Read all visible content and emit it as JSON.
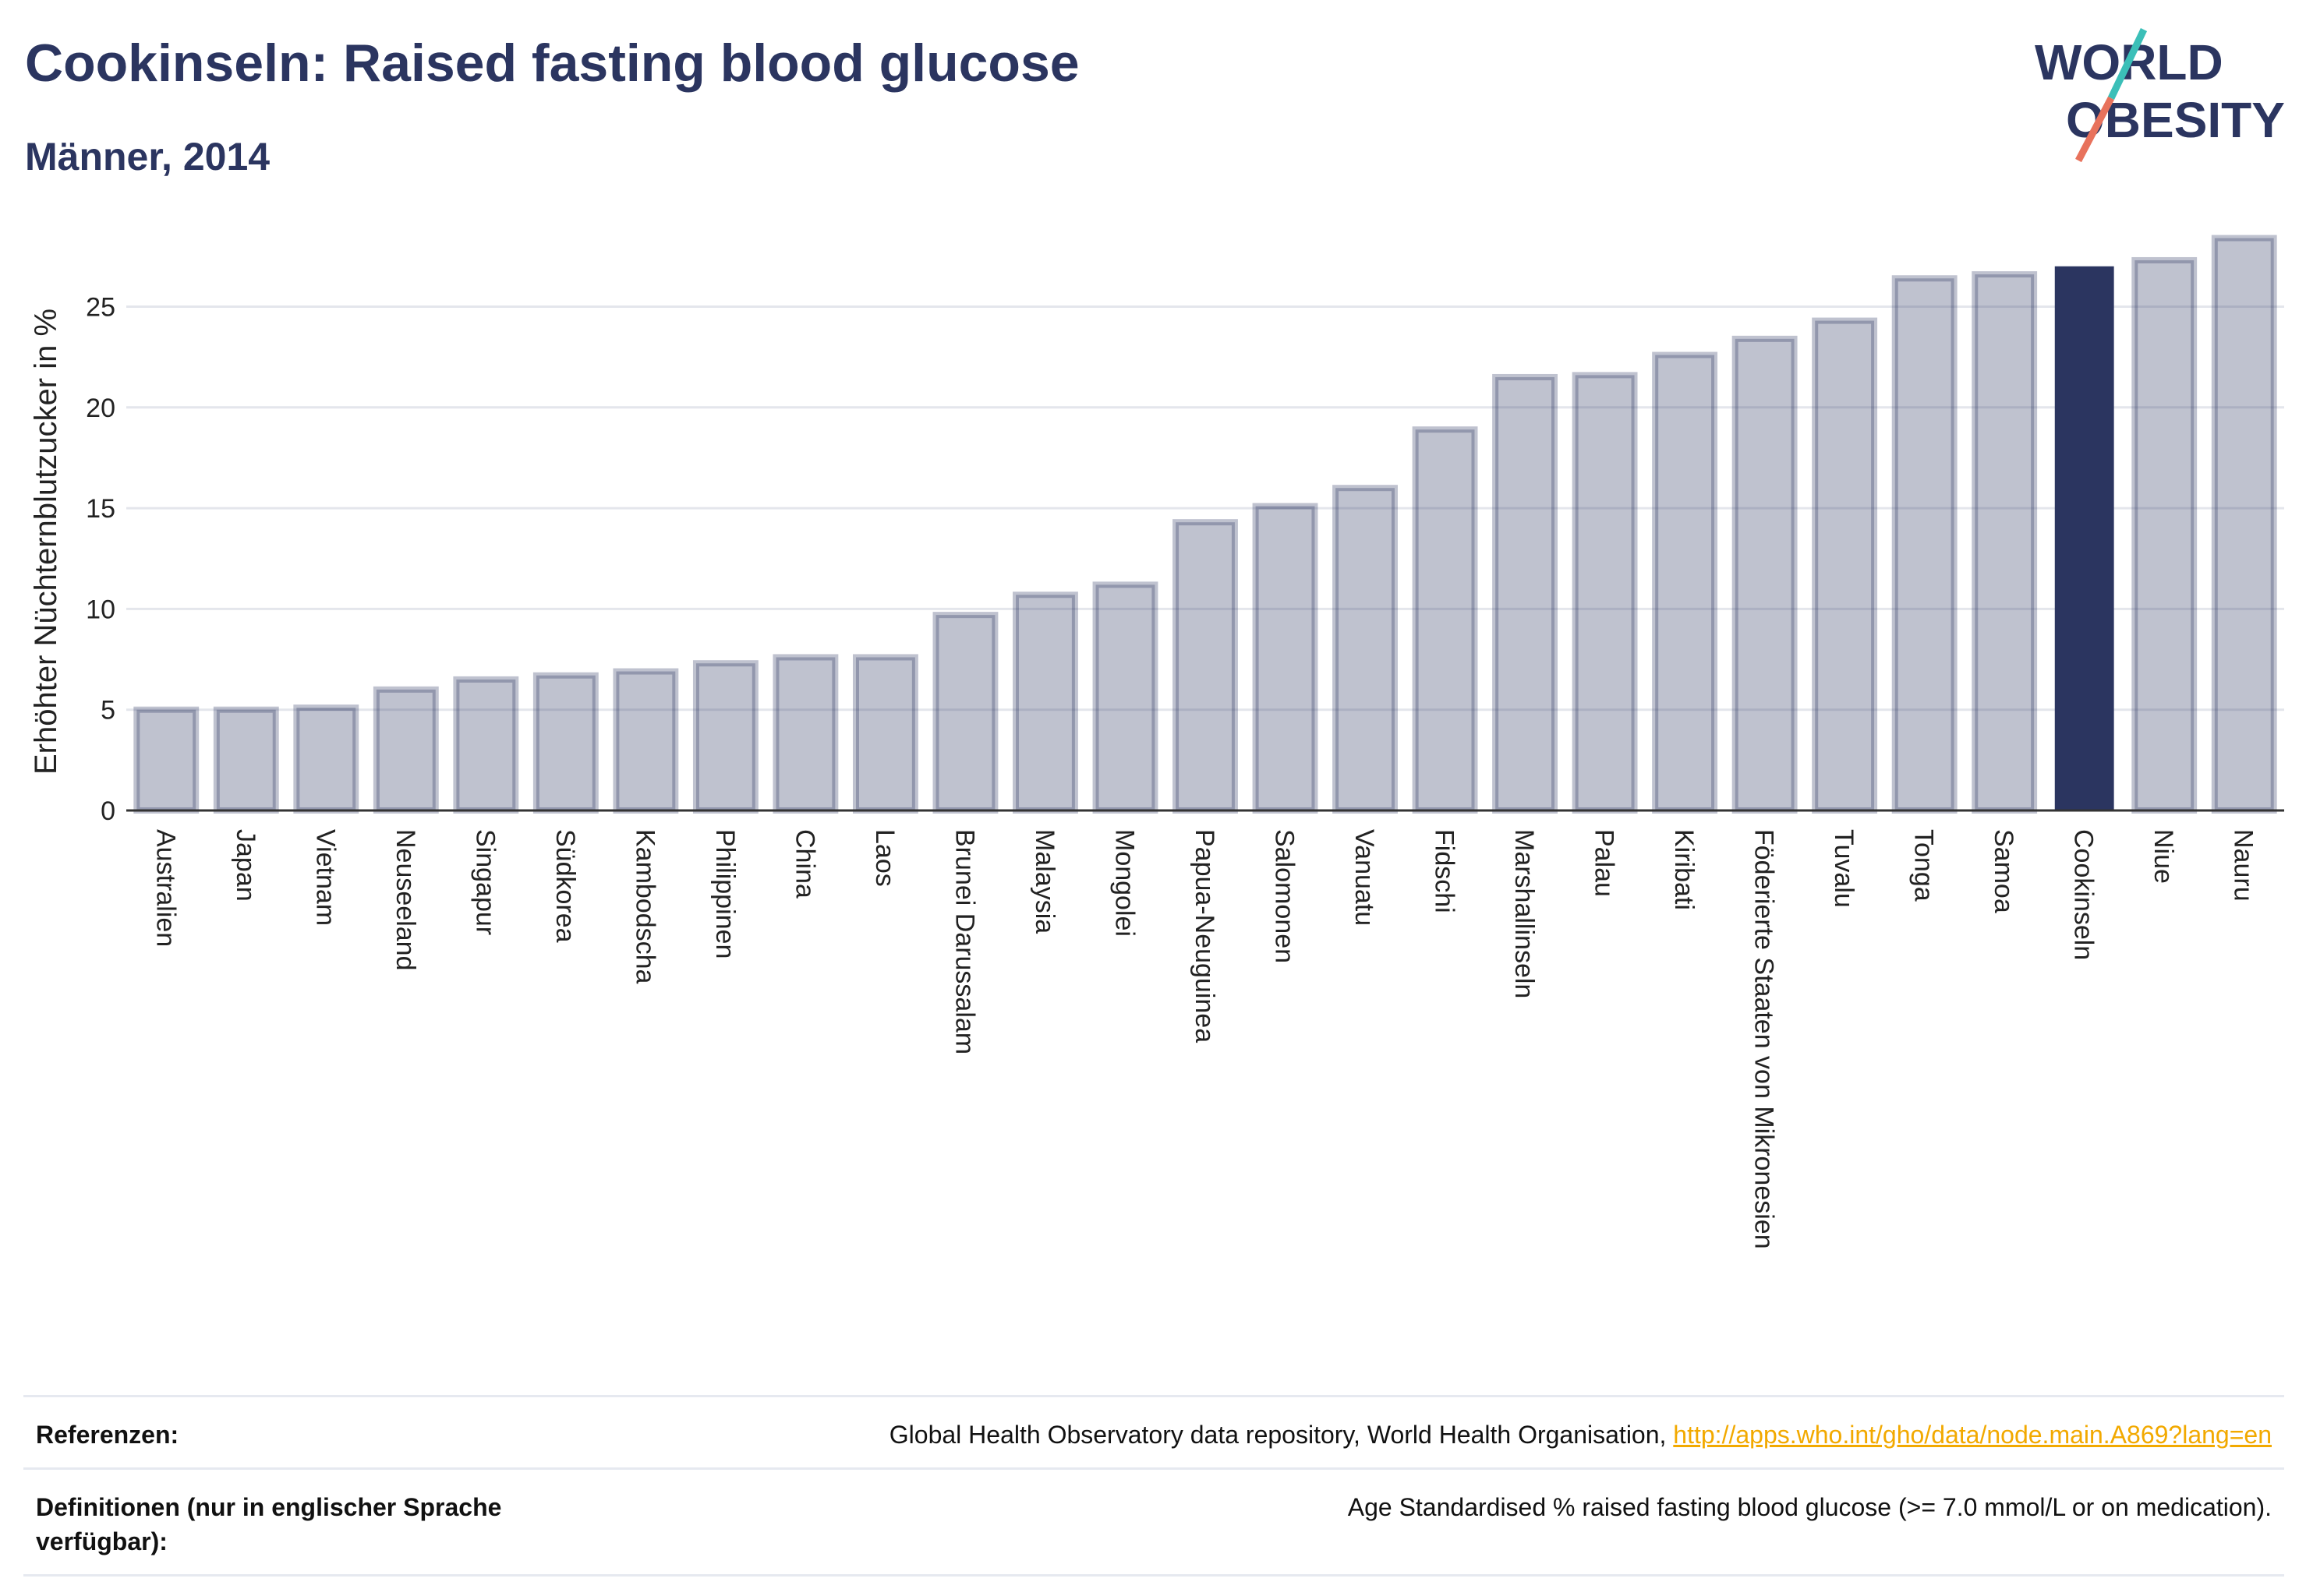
{
  "header": {
    "title": "Cookinseln: Raised fasting blood glucose",
    "subtitle": "Männer, 2014"
  },
  "logo": {
    "line1": "WORLD",
    "line2": "OBESITY",
    "text_color": "#2b3560",
    "slash_top_color": "#3bbfb8",
    "slash_bottom_color": "#e8725c"
  },
  "colors": {
    "bar": "#2b3560",
    "bar_muted_opacity": 0.3,
    "highlight": "#2b3560"
  },
  "chart_data": {
    "type": "bar",
    "ylabel": "Erhöhter Nüchternblutzucker in %",
    "xlabel": "",
    "ylim": [
      0,
      29
    ],
    "yticks": [
      0,
      5,
      10,
      15,
      20,
      25
    ],
    "grid": true,
    "highlight": "Cookinseln",
    "categories": [
      "Australien",
      "Japan",
      "Vietnam",
      "Neuseeland",
      "Singapur",
      "Südkorea",
      "Kambodscha",
      "Philippinen",
      "China",
      "Laos",
      "Brunei Darussalam",
      "Malaysia",
      "Mongolei",
      "Papua-Neuguinea",
      "Salomonen",
      "Vanuatu",
      "Fidschi",
      "Marshallinseln",
      "Palau",
      "Kiribati",
      "Föderierte Staaten von Mikronesien",
      "Tuvalu",
      "Tonga",
      "Samoa",
      "Cookinseln",
      "Niue",
      "Nauru"
    ],
    "values": [
      5.0,
      5.0,
      5.1,
      6.0,
      6.5,
      6.7,
      6.9,
      7.3,
      7.6,
      7.6,
      9.7,
      10.7,
      11.2,
      14.3,
      15.1,
      16.0,
      18.9,
      21.5,
      21.6,
      22.6,
      23.4,
      24.3,
      26.4,
      26.6,
      27.0,
      27.3,
      28.4
    ]
  },
  "references": {
    "label": "Referenzen:",
    "text": "Global Health Observatory data repository, World Health Organisation,",
    "link": "http://apps.who.int/gho/data/node.main.A869?lang=en"
  },
  "definitions": {
    "label": "Definitionen (nur in englischer Sprache verfügbar):",
    "text": "Age Standardised % raised fasting blood glucose (>= 7.0 mmol/L or on medication)."
  }
}
